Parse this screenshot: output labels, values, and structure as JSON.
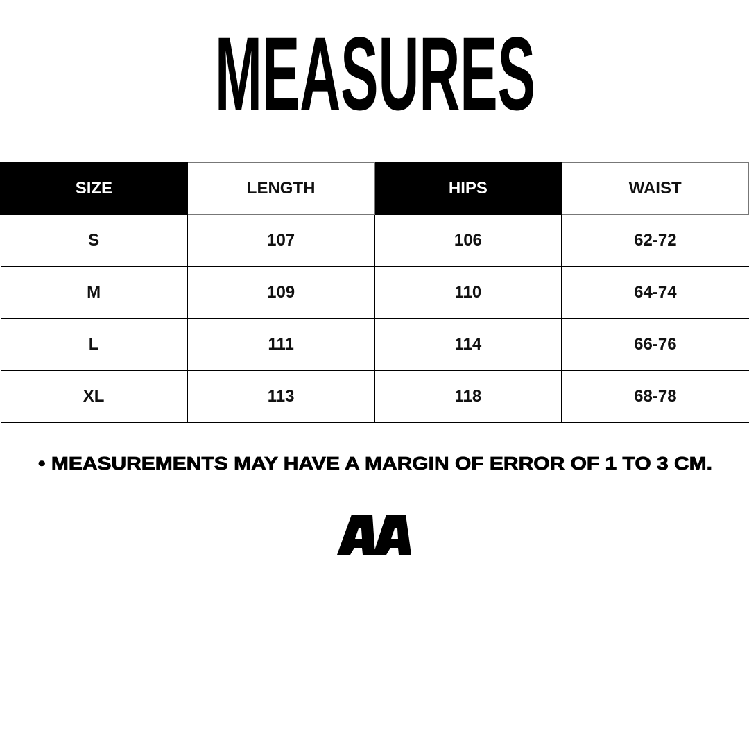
{
  "title": "MEASURES",
  "table": {
    "headers": [
      "SIZE",
      "LENGTH",
      "HIPS",
      "WAIST"
    ],
    "rows": [
      [
        "S",
        "107",
        "106",
        "62-72"
      ],
      [
        "M",
        "109",
        "110",
        "64-74"
      ],
      [
        "L",
        "111",
        "114",
        "66-76"
      ],
      [
        "XL",
        "113",
        "118",
        "68-78"
      ]
    ]
  },
  "note": "• MEASUREMENTS MAY HAVE A MARGIN OF ERROR OF 1 TO 3 CM.",
  "logo": "AA"
}
